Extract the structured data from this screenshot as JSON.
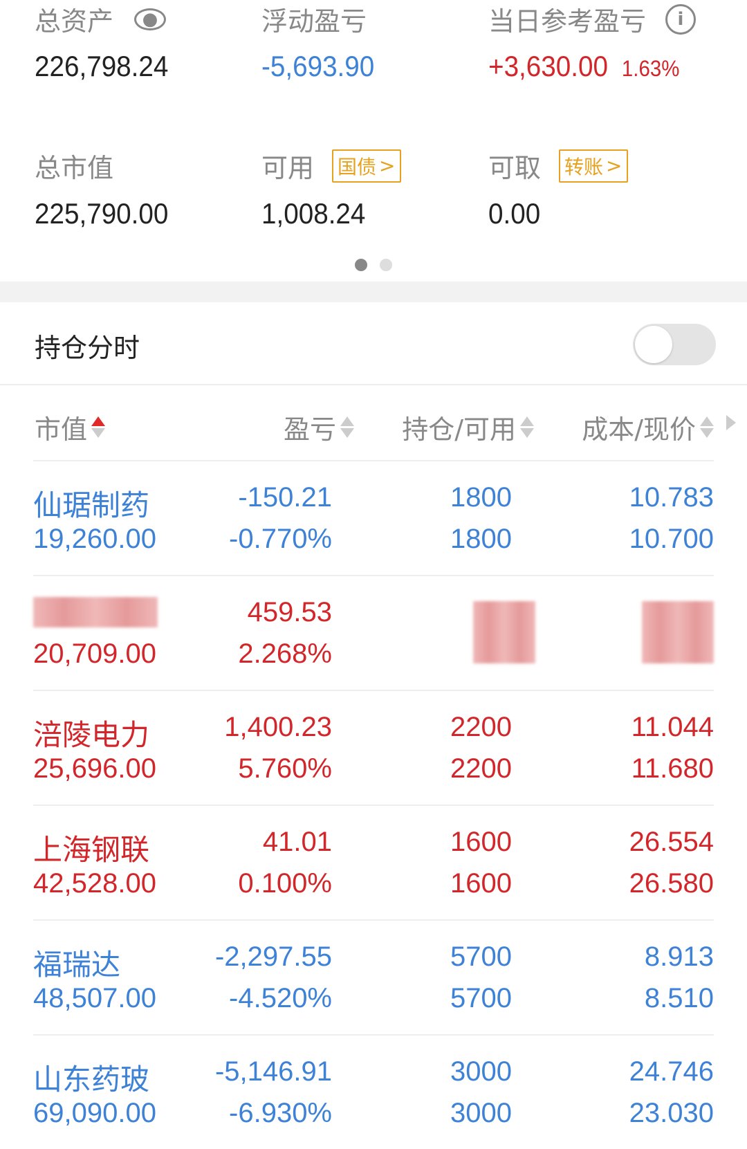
{
  "summary": {
    "total_assets": {
      "label": "总资产",
      "value": "226,798.24",
      "icon": "eye-icon"
    },
    "floating_pl": {
      "label": "浮动盈亏",
      "value": "-5,693.90"
    },
    "daily_pl": {
      "label": "当日参考盈亏",
      "value": "+3,630.00",
      "percent": "1.63%",
      "icon": "info-icon"
    },
    "market_value": {
      "label": "总市值",
      "value": "225,790.00"
    },
    "available": {
      "label": "可用",
      "value": "1,008.24",
      "tag": "国债"
    },
    "withdrawable": {
      "label": "可取",
      "value": "0.00",
      "tag": "转账"
    },
    "page_indicator": {
      "current": 1,
      "total": 2
    }
  },
  "intraday": {
    "label": "持仓分时",
    "toggle_on": false
  },
  "table": {
    "headers": [
      "市值",
      "盈亏",
      "持仓/可用",
      "成本/现价"
    ],
    "sorted_column": "市值",
    "sort_direction": "asc",
    "rows": [
      {
        "name": "仙琚制药",
        "market_value": "19,260.00",
        "pl": "-150.21",
        "pl_pct": "-0.770%",
        "position": "1800",
        "available": "1800",
        "cost": "10.783",
        "price": "10.700",
        "color": "blue"
      },
      {
        "name": "",
        "market_value": "20,709.00",
        "pl": "459.53",
        "pl_pct": "2.268%",
        "position": "",
        "available": "",
        "cost": "",
        "price": "",
        "color": "red",
        "redacted": true
      },
      {
        "name": "涪陵电力",
        "market_value": "25,696.00",
        "pl": "1,400.23",
        "pl_pct": "5.760%",
        "position": "2200",
        "available": "2200",
        "cost": "11.044",
        "price": "11.680",
        "color": "red"
      },
      {
        "name": "上海钢联",
        "market_value": "42,528.00",
        "pl": "41.01",
        "pl_pct": "0.100%",
        "position": "1600",
        "available": "1600",
        "cost": "26.554",
        "price": "26.580",
        "color": "red"
      },
      {
        "name": "福瑞达",
        "market_value": "48,507.00",
        "pl": "-2,297.55",
        "pl_pct": "-4.520%",
        "position": "5700",
        "available": "5700",
        "cost": "8.913",
        "price": "8.510",
        "color": "blue"
      },
      {
        "name": "山东药玻",
        "market_value": "69,090.00",
        "pl": "-5,146.91",
        "pl_pct": "-6.930%",
        "position": "3000",
        "available": "3000",
        "cost": "24.746",
        "price": "23.030",
        "color": "blue"
      }
    ]
  },
  "colors": {
    "up": "#d2262a",
    "down": "#3d82d6",
    "tag": "#e6a21e"
  }
}
